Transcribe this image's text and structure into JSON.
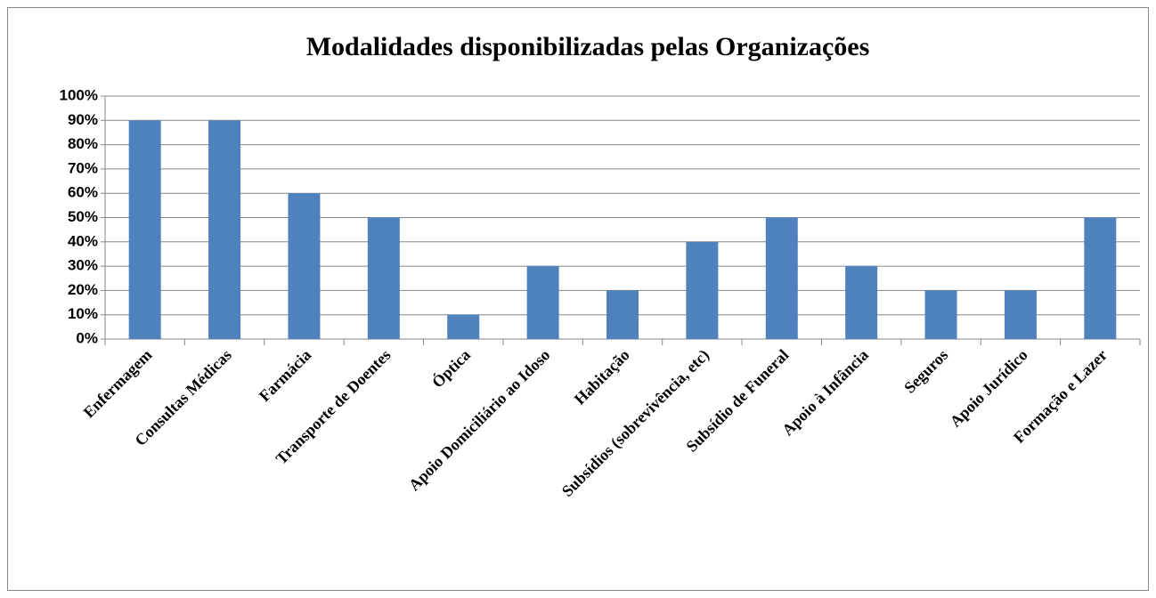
{
  "chart_data": {
    "type": "bar",
    "title": "Modalidades disponibilizadas pelas Organizações",
    "categories": [
      "Enfermagem",
      "Consultas Médicas",
      "Farmácia",
      "Transporte de Doentes",
      "Óptica",
      "Apoio Domiciliário ao Idoso",
      "Habitação",
      "Subsídios (sobrevivência, etc)",
      "Subsídio de Funeral",
      "Apoio à Infância",
      "Seguros",
      "Apoio Jurídico",
      "Formação e Lazer"
    ],
    "values": [
      90,
      90,
      60,
      50,
      10,
      30,
      20,
      40,
      50,
      30,
      20,
      20,
      50
    ],
    "color": "#4f81bd",
    "ylim": [
      0,
      100
    ],
    "yticks": [
      {
        "value": 0,
        "label": "0%"
      },
      {
        "value": 10,
        "label": "10%"
      },
      {
        "value": 20,
        "label": "20%"
      },
      {
        "value": 30,
        "label": "30%"
      },
      {
        "value": 40,
        "label": "40%"
      },
      {
        "value": 50,
        "label": "50%"
      },
      {
        "value": 60,
        "label": "60%"
      },
      {
        "value": 70,
        "label": "70%"
      },
      {
        "value": 80,
        "label": "80%"
      },
      {
        "value": 90,
        "label": "90%"
      },
      {
        "value": 100,
        "label": "100%"
      }
    ],
    "grid": true
  }
}
